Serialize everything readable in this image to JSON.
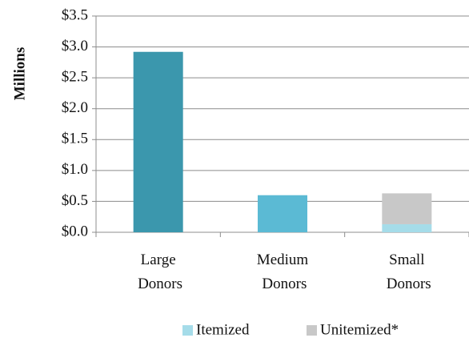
{
  "chart_data": {
    "type": "stacked_bar",
    "y_axis_label": "Millions",
    "categories": [
      "Large Donors",
      "Medium Donors",
      "Small Donors"
    ],
    "series": [
      {
        "name": "Itemized",
        "color": "#a5dce9",
        "colors": [
          "#3b97ad",
          "#5bbad4",
          "#a5dce9"
        ],
        "values": [
          2.92,
          0.6,
          0.13
        ]
      },
      {
        "name": "Unitemized*",
        "color": "#c8c8c8",
        "values": [
          null,
          null,
          0.5
        ]
      }
    ],
    "ylim": [
      0,
      3.5
    ],
    "yticks": [
      {
        "value": 0,
        "label": "$0.0"
      },
      {
        "value": 0.5,
        "label": "$0.5"
      },
      {
        "value": 1,
        "label": "$1.0"
      },
      {
        "value": 1.5,
        "label": "$1.5"
      },
      {
        "value": 2,
        "label": "$2.0"
      },
      {
        "value": 2.5,
        "label": "$2.5"
      },
      {
        "value": 3,
        "label": "$3.0"
      },
      {
        "value": 3.5,
        "label": "$3.5"
      }
    ],
    "grid": true,
    "legend": "bottom"
  }
}
